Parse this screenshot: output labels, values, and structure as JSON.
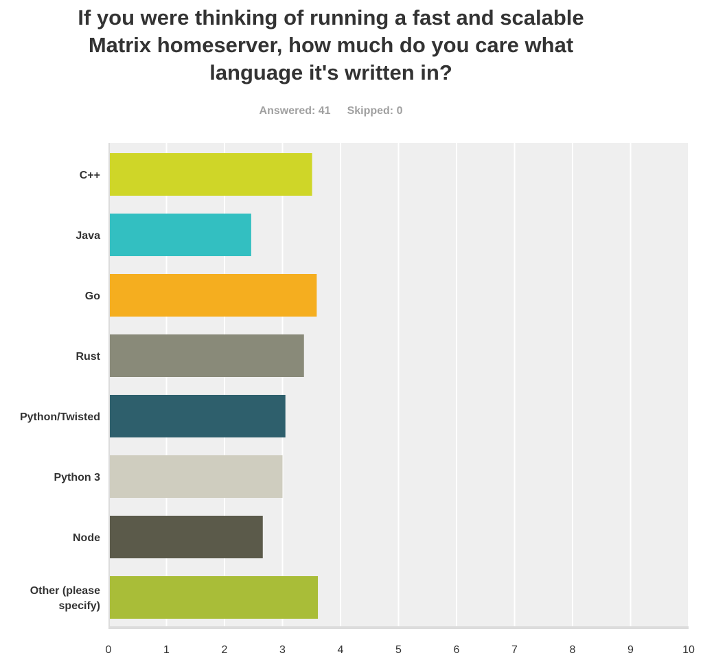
{
  "title": "If you were thinking of running a fast and scalable Matrix homeserver, how much do you care what language it's written in?",
  "answered": "Answered: 41",
  "skipped": "Skipped: 0",
  "chart_data": {
    "type": "bar",
    "orientation": "horizontal",
    "title": "If you were thinking of running a fast and scalable Matrix homeserver, how much do you care what language it's written in?",
    "categories": [
      "C++",
      "Java",
      "Go",
      "Rust",
      "Python/Twisted",
      "Python 3",
      "Node",
      "Other (please specify)"
    ],
    "values": [
      3.51,
      2.46,
      3.59,
      3.37,
      3.05,
      3.0,
      2.66,
      3.61
    ],
    "colors": [
      "#cfd628",
      "#33bfc1",
      "#f5ae1f",
      "#898a79",
      "#2e5f6c",
      "#cfcdbf",
      "#5b5a4a",
      "#a9bd38"
    ],
    "xlim": [
      0,
      10
    ],
    "xticks": [
      "0",
      "1",
      "2",
      "3",
      "4",
      "5",
      "6",
      "7",
      "8",
      "9",
      "10"
    ],
    "grid": true,
    "background": "#efefef"
  }
}
